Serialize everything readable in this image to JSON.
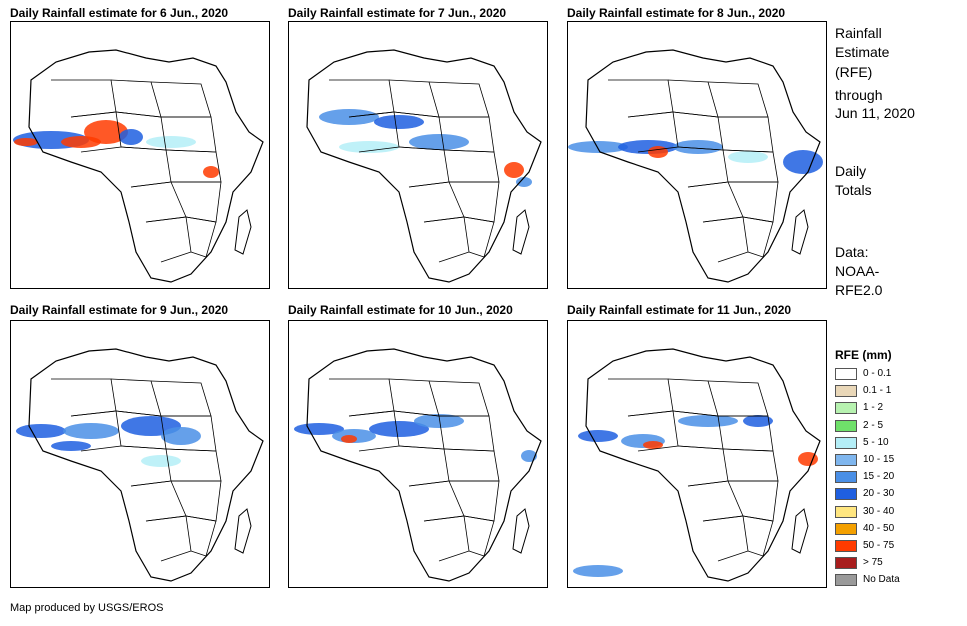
{
  "panels": [
    {
      "title": "Daily Rainfall estimate for 6 Jun., 2020"
    },
    {
      "title": "Daily Rainfall estimate for 7 Jun., 2020"
    },
    {
      "title": "Daily Rainfall estimate for 8 Jun., 2020"
    },
    {
      "title": "Daily Rainfall estimate for 9 Jun., 2020"
    },
    {
      "title": "Daily Rainfall estimate for 10 Jun., 2020"
    },
    {
      "title": "Daily Rainfall estimate for 11 Jun., 2020"
    }
  ],
  "sidebar": {
    "title_line1": "Rainfall",
    "title_line2": "Estimate",
    "title_line3": "(RFE)",
    "through": "through",
    "date": "Jun 11, 2020",
    "daily1": "Daily",
    "daily2": "Totals",
    "data1": "Data:",
    "data2": "NOAA-",
    "data3": "RFE2.0"
  },
  "legend": {
    "title": "RFE (mm)",
    "items": [
      {
        "label": "0 - 0.1",
        "color": "#ffffff"
      },
      {
        "label": "0.1 - 1",
        "color": "#e9d7b8"
      },
      {
        "label": "1 - 2",
        "color": "#b7f2b0"
      },
      {
        "label": "2 - 5",
        "color": "#6fe06a"
      },
      {
        "label": "5 - 10",
        "color": "#b4eef7"
      },
      {
        "label": "10 - 15",
        "color": "#7fb6ee"
      },
      {
        "label": "15 - 20",
        "color": "#4a8fe6"
      },
      {
        "label": "20 - 30",
        "color": "#1f5fe0"
      },
      {
        "label": "30 - 40",
        "color": "#ffe680"
      },
      {
        "label": "40 - 50",
        "color": "#f4a000"
      },
      {
        "label": "50 - 75",
        "color": "#ff3b00"
      },
      {
        "label": "> 75",
        "color": "#a81d1d"
      },
      {
        "label": "No Data",
        "color": "#9a9a9a"
      }
    ]
  },
  "footer": "Map produced by USGS/EROS"
}
